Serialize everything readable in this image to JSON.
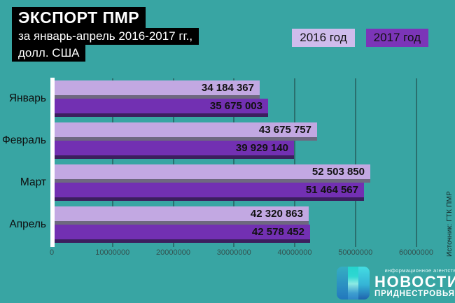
{
  "title_block": {
    "line1": "ЭКСПОРТ ПМР",
    "line2": "за январь-апрель 2016-2017 гг.,",
    "line3": "долл. США"
  },
  "legend": [
    {
      "label": "2016 год",
      "color": "#cfbcec"
    },
    {
      "label": "2017 год",
      "color": "#7b35b8"
    }
  ],
  "source_note": "Источник: ГТК ПМР",
  "logo": {
    "tagline": "информационное агентство",
    "title": "НОВОСТИ",
    "subtitle": "ПРИДНЕСТРОВЬЯ"
  },
  "colors": {
    "background": "#38a5a3",
    "grid": "#2a6f6e",
    "axis": "#ffffff",
    "title_bg": "#000000",
    "title_text": "#ffffff",
    "tick_label": "#33514f",
    "value_label": "#111111",
    "bar_2016": "#c2a8e2",
    "bar_2016_shadow": "#6e6880",
    "bar_2017": "#7230b2",
    "bar_2017_shadow": "#3c1f5e"
  },
  "chart_data": {
    "type": "bar",
    "orientation": "horizontal",
    "title": "ЭКСПОРТ ПМР за январь-апрель 2016-2017 гг., долл. США",
    "categories": [
      "Январь",
      "Февраль",
      "Март",
      "Апрель"
    ],
    "series": [
      {
        "name": "2016 год",
        "color": "#c2a8e2",
        "shadow_color": "#6e6880",
        "values": [
          34184367,
          43675757,
          52503850,
          42320863
        ],
        "value_labels": [
          "34 184 367",
          "43 675 757",
          "52 503 850",
          "42 320 863"
        ]
      },
      {
        "name": "2017 год",
        "color": "#7230b2",
        "shadow_color": "#3c1f5e",
        "values": [
          35675003,
          39929140,
          51464567,
          42578452
        ],
        "value_labels": [
          "35 675 003",
          "39 929 140",
          "51 464 567",
          "42 578 452"
        ]
      }
    ],
    "xlim": [
      0,
      60000000
    ],
    "xticks": [
      0,
      10000000,
      20000000,
      30000000,
      40000000,
      50000000,
      60000000
    ],
    "xtick_labels": [
      "0",
      "10000000",
      "20000000",
      "30000000",
      "40000000",
      "50000000",
      "60000000"
    ],
    "grid": true,
    "legend_position": "top-right",
    "value_labels_inside_bars": true
  }
}
